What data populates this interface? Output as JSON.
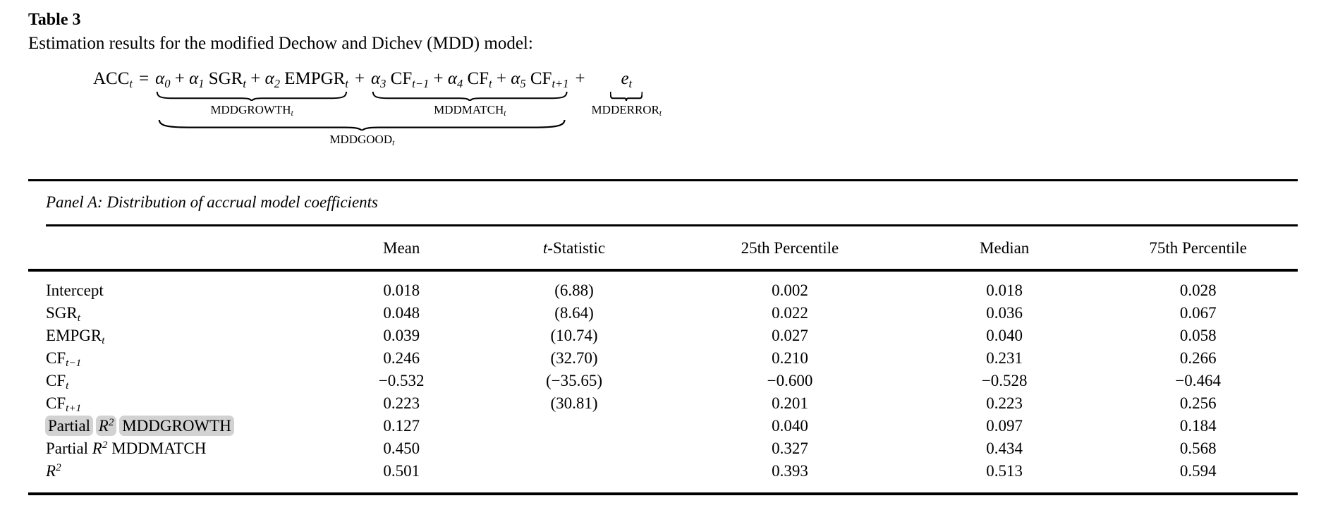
{
  "title": "Table 3",
  "subtitle": "Estimation results for the modified Dechow and Dichev (MDD) model:",
  "equation": {
    "lhs": [
      {
        "t": "ACC",
        "sub": "t"
      }
    ],
    "equals": "=",
    "plus": "+",
    "growth": {
      "terms": [
        {
          "t": "α",
          "it": 1,
          "sub": "0"
        },
        {
          "t": " + "
        },
        {
          "t": "α",
          "it": 1,
          "sub": "1"
        },
        {
          "t": " SGR",
          "sub": "t"
        },
        {
          "t": " + "
        },
        {
          "t": "α",
          "it": 1,
          "sub": "2"
        },
        {
          "t": " EMPGR",
          "sub": "t"
        }
      ],
      "label": [
        {
          "t": "MDDGROWTH",
          "sub": "t"
        }
      ]
    },
    "match": {
      "terms": [
        {
          "t": "α",
          "it": 1,
          "sub": "3"
        },
        {
          "t": " CF",
          "sub": "t−1"
        },
        {
          "t": " + "
        },
        {
          "t": "α",
          "it": 1,
          "sub": "4"
        },
        {
          "t": " CF",
          "sub": "t"
        },
        {
          "t": " + "
        },
        {
          "t": "α",
          "it": 1,
          "sub": "5"
        },
        {
          "t": " CF",
          "sub": "t+1"
        }
      ],
      "label": [
        {
          "t": "MDDMATCH",
          "sub": "t"
        }
      ]
    },
    "error": {
      "terms": [
        {
          "t": "e",
          "it": 1,
          "sub": "t"
        }
      ],
      "label": [
        {
          "t": "MDDERROR",
          "sub": "t"
        }
      ]
    },
    "good_label": [
      {
        "t": "MDDGOOD",
        "sub": "t"
      }
    ]
  },
  "panel": {
    "title": "Panel A: Distribution of accrual model coefficients",
    "columns": [
      [],
      [
        {
          "t": "Mean"
        }
      ],
      [
        {
          "t": "t",
          "it": 1
        },
        {
          "t": "-Statistic"
        }
      ],
      [
        {
          "t": "25th Percentile"
        }
      ],
      [
        {
          "t": "Median"
        }
      ],
      [
        {
          "t": "75th Percentile"
        }
      ]
    ],
    "rows": [
      {
        "label": [
          {
            "t": "Intercept"
          }
        ],
        "cells": [
          "0.018",
          "(6.88)",
          "0.002",
          "0.018",
          "0.028"
        ]
      },
      {
        "label": [
          {
            "t": "SGR",
            "sub": "t"
          }
        ],
        "cells": [
          "0.048",
          "(8.64)",
          "0.022",
          "0.036",
          "0.067"
        ]
      },
      {
        "label": [
          {
            "t": "EMPGR",
            "sub": "t"
          }
        ],
        "cells": [
          "0.039",
          "(10.74)",
          "0.027",
          "0.040",
          "0.058"
        ]
      },
      {
        "label": [
          {
            "t": "CF",
            "sub": "t−1"
          }
        ],
        "cells": [
          "0.246",
          "(32.70)",
          "0.210",
          "0.231",
          "0.266"
        ]
      },
      {
        "label": [
          {
            "t": "CF",
            "sub": "t"
          }
        ],
        "cells": [
          "−0.532",
          "(−35.65)",
          "−0.600",
          "−0.528",
          "−0.464"
        ]
      },
      {
        "label": [
          {
            "t": "CF",
            "sub": "t+1"
          }
        ],
        "cells": [
          "0.223",
          "(30.81)",
          "0.201",
          "0.223",
          "0.256"
        ]
      },
      {
        "label": [
          {
            "t": "Partial",
            "hl": 1
          },
          {
            "t": " "
          },
          {
            "t": "R",
            "it": 1,
            "sup": "2",
            "hl": 1
          },
          {
            "t": " "
          },
          {
            "t": "MDDGROWTH",
            "hl": 1
          }
        ],
        "cells": [
          "0.127",
          "",
          "0.040",
          "0.097",
          "0.184"
        ]
      },
      {
        "label": [
          {
            "t": "Partial"
          },
          {
            "t": " "
          },
          {
            "t": "R",
            "it": 1,
            "sup": "2"
          },
          {
            "t": " "
          },
          {
            "t": "MDDMATCH"
          }
        ],
        "cells": [
          "0.450",
          "",
          "0.327",
          "0.434",
          "0.568"
        ]
      },
      {
        "label": [
          {
            "t": "R",
            "it": 1,
            "sup": "2"
          }
        ],
        "cells": [
          "0.501",
          "",
          "0.393",
          "0.513",
          "0.594"
        ]
      }
    ]
  },
  "colors": {
    "highlight": "#d2d2d2",
    "text": "#000000",
    "rule": "#000000",
    "background": "#ffffff"
  }
}
